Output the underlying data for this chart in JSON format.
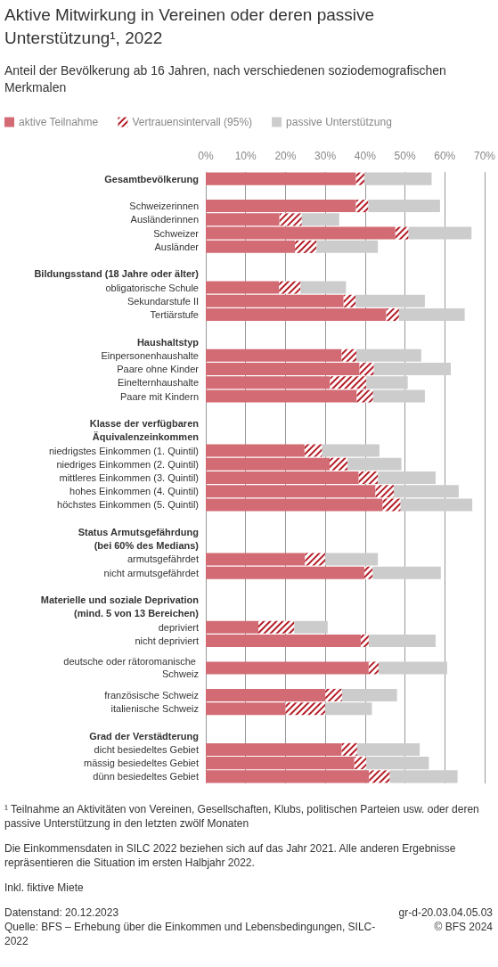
{
  "chart_data": {
    "type": "bar",
    "orientation": "horizontal",
    "stacked": true,
    "title": "Aktive Mitwirkung in Vereinen oder deren passive Unterstützung¹, 2022",
    "subtitle": "Anteil der Bevölkerung ab 16 Jahren, nach verschiedenen soziodemografischen Merkmalen",
    "categories": [
      "Gesamtbevölkerung",
      null,
      "Schweizerinnen",
      "Ausländerinnen",
      "Schweizer",
      "Ausländer",
      null,
      "Bildungsstand (18 Jahre oder älter)",
      "obligatorische Schule",
      "Sekundarstufe II",
      "Tertiärstufe",
      null,
      "Haushaltstyp",
      "Einpersonenhaushalte",
      "Paare ohne Kinder",
      "Einelternhaushalte",
      "Paare mit Kindern",
      null,
      "Klasse der verfügbaren",
      "Äquivalenzeinkommen",
      "niedrigstes Einkommen (1. Quintil)",
      "niedriges Einkommen (2. Quintil)",
      "mittleres Einkommen (3. Quintil)",
      "hohes Einkommen (4. Quintil)",
      "höchstes Einkommen (5. Quintil)",
      null,
      "Status Armutsgefährdung",
      "(bei 60% des Medians)",
      "armutsgefährdet",
      "nicht armutsgefährdet",
      null,
      "Materielle und soziale Deprivation",
      "(mind. 5 von 13 Bereichen)",
      "depriviert",
      "nicht depriviert",
      null,
      "deutsche oder rätoromanische Schweiz",
      null,
      "französische Schweiz",
      "italienische Schweiz",
      null,
      "Grad der Verstädterung",
      "dicht besiedeltes Gebiet",
      "mässig besiedeltes Gebiet",
      "dünn besiedeltes Gebiet"
    ],
    "series": [
      {
        "name": "aktive Teilnahme",
        "color": "#d36b74",
        "values": [
          37.7,
          null,
          37.7,
          18.5,
          47.6,
          22.4,
          null,
          null,
          18.4,
          34.6,
          45.3,
          null,
          null,
          34.1,
          38.6,
          31.2,
          37.9,
          null,
          null,
          null,
          24.8,
          31.1,
          38.4,
          42.6,
          44.4,
          null,
          null,
          null,
          24.9,
          39.8,
          null,
          null,
          null,
          13.2,
          38.9,
          null,
          40.9,
          null,
          30.0,
          20.0,
          null,
          null,
          34.1,
          37.3,
          41.0
        ]
      },
      {
        "name": "Vertrauensintervall (95%)",
        "color": "#b41e28",
        "values": [
          2.1,
          null,
          3.1,
          5.6,
          3.3,
          5.4,
          null,
          null,
          5.4,
          3.0,
          3.2,
          null,
          null,
          3.7,
          3.6,
          9.1,
          4.1,
          null,
          null,
          null,
          4.4,
          4.5,
          4.8,
          4.6,
          4.5,
          null,
          null,
          null,
          5.1,
          2.1,
          null,
          null,
          null,
          9.0,
          2.0,
          null,
          2.5,
          null,
          4.2,
          10.0,
          null,
          null,
          3.9,
          3.0,
          5.2
        ]
      },
      {
        "name": "passive Unterstützung",
        "color": "#cccccc",
        "values": [
          16.9,
          null,
          18.0,
          9.4,
          15.8,
          15.4,
          null,
          null,
          11.4,
          17.4,
          16.5,
          null,
          null,
          16.3,
          19.3,
          10.4,
          13.0,
          null,
          null,
          null,
          14.4,
          13.5,
          14.5,
          16.3,
          18.0,
          null,
          null,
          null,
          13.2,
          17.1,
          null,
          null,
          null,
          8.4,
          16.8,
          null,
          17.2,
          null,
          13.8,
          11.7,
          null,
          null,
          15.7,
          15.7,
          17.0
        ]
      }
    ],
    "xlim": [
      0,
      70
    ],
    "xticks": [
      {
        "value": 0,
        "label": "0%"
      },
      {
        "value": 10,
        "label": "10%"
      },
      {
        "value": 20,
        "label": "20%"
      },
      {
        "value": 30,
        "label": "30%"
      },
      {
        "value": 40,
        "label": "40%"
      },
      {
        "value": 50,
        "label": "50%"
      },
      {
        "value": 60,
        "label": "60%"
      },
      {
        "value": 70,
        "label": "70%"
      }
    ],
    "grid": "x",
    "legend": "top left",
    "annotations": [
      "¹ Teilnahme an Aktivitäten von Vereinen, Gesellschaften, Klubs, politischen Parteien usw. oder deren passive Unterstützung in den letzten zwölf Monaten",
      "Die Einkommensdaten in SILC 2022 beziehen sich auf das Jahr 2021. Alle anderen Ergebnisse repräsentieren die Situation im ersten Halbjahr 2022.",
      "Inkl. fiktive Miete",
      "Datenstand: 20.12.2023",
      "Quelle: BFS – Erhebung über die Einkommen und Lebensbedingungen, SILC-2022",
      "gr-d-20.03.04.05.03",
      "© BFS 2024"
    ]
  }
}
